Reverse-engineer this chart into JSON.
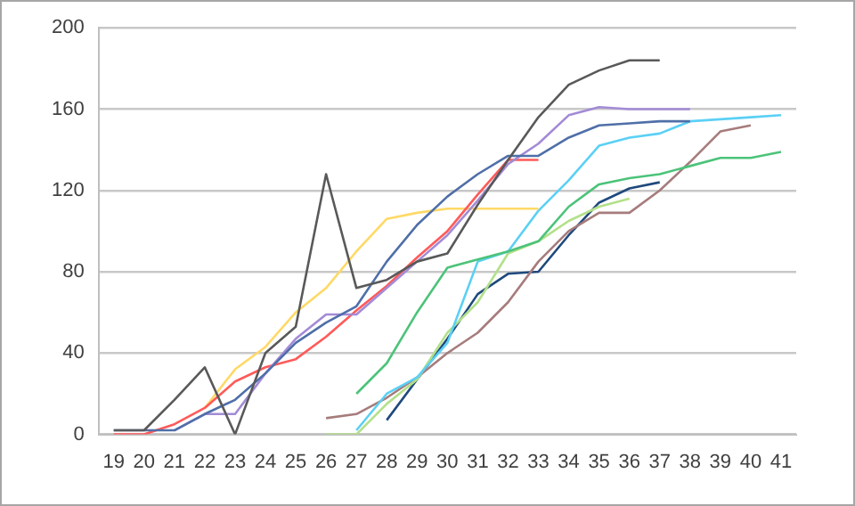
{
  "chart_data": {
    "type": "line",
    "categories": [
      "19",
      "20",
      "21",
      "22",
      "23",
      "24",
      "25",
      "26",
      "27",
      "28",
      "29",
      "30",
      "31",
      "32",
      "33",
      "34",
      "35",
      "36",
      "37",
      "38",
      "39",
      "40",
      "41"
    ],
    "series": [
      {
        "color": "#595959",
        "values": [
          2,
          2,
          17,
          33,
          0,
          40,
          53,
          128,
          72,
          76,
          85,
          89,
          113,
          135,
          156,
          172,
          179,
          184,
          184,
          null,
          null,
          null,
          null
        ]
      },
      {
        "color": "#4f6fa8",
        "values": [
          2,
          2,
          2,
          10,
          17,
          30,
          45,
          55,
          63,
          85,
          103,
          117,
          128,
          137,
          137,
          146,
          152,
          153,
          154,
          154,
          null,
          null,
          null
        ]
      },
      {
        "color": "#a38bd6",
        "values": [
          null,
          null,
          2,
          10,
          10,
          30,
          47,
          59,
          59,
          72,
          85,
          98,
          115,
          133,
          143,
          157,
          161,
          160,
          160,
          160,
          null,
          null,
          null
        ]
      },
      {
        "color": "#ff5a5a",
        "values": [
          0,
          0,
          5,
          13,
          26,
          33,
          37,
          48,
          61,
          73,
          87,
          100,
          118,
          135,
          135,
          null,
          null,
          null,
          null,
          null,
          null,
          null,
          null
        ]
      },
      {
        "color": "#ffd966",
        "values": [
          null,
          null,
          null,
          13,
          32,
          43,
          60,
          72,
          90,
          106,
          109,
          111,
          111,
          111,
          111,
          null,
          null,
          null,
          null,
          null,
          null,
          null,
          null
        ]
      },
      {
        "color": "#4cc37a",
        "values": [
          null,
          null,
          null,
          null,
          null,
          null,
          null,
          null,
          20,
          35,
          60,
          82,
          86,
          90,
          95,
          112,
          123,
          126,
          128,
          132,
          136,
          136,
          139
        ]
      },
      {
        "color": "#5bd0f5",
        "values": [
          null,
          null,
          null,
          null,
          null,
          null,
          null,
          null,
          2,
          20,
          28,
          45,
          85,
          90,
          110,
          125,
          142,
          146,
          148,
          154,
          155,
          156,
          157
        ]
      },
      {
        "color": "#b3e08a",
        "values": [
          null,
          null,
          null,
          null,
          null,
          null,
          null,
          0,
          0,
          15,
          27,
          50,
          65,
          89,
          95,
          105,
          112,
          116,
          null,
          null,
          null,
          null,
          null
        ]
      },
      {
        "color": "#a67c7c",
        "values": [
          null,
          null,
          null,
          null,
          null,
          null,
          null,
          8,
          10,
          18,
          28,
          40,
          50,
          65,
          85,
          100,
          109,
          109,
          120,
          134,
          149,
          152,
          null
        ]
      },
      {
        "color": "#1f497d",
        "values": [
          null,
          null,
          null,
          null,
          null,
          null,
          null,
          null,
          null,
          7,
          27,
          47,
          69,
          79,
          80,
          98,
          114,
          121,
          124,
          null,
          null,
          null,
          null
        ]
      }
    ],
    "ylim": [
      0,
      200
    ],
    "yticks": [
      0,
      40,
      80,
      120,
      160,
      200
    ],
    "grid": "y",
    "legend": false,
    "marker": "none",
    "line_style": "solid"
  }
}
